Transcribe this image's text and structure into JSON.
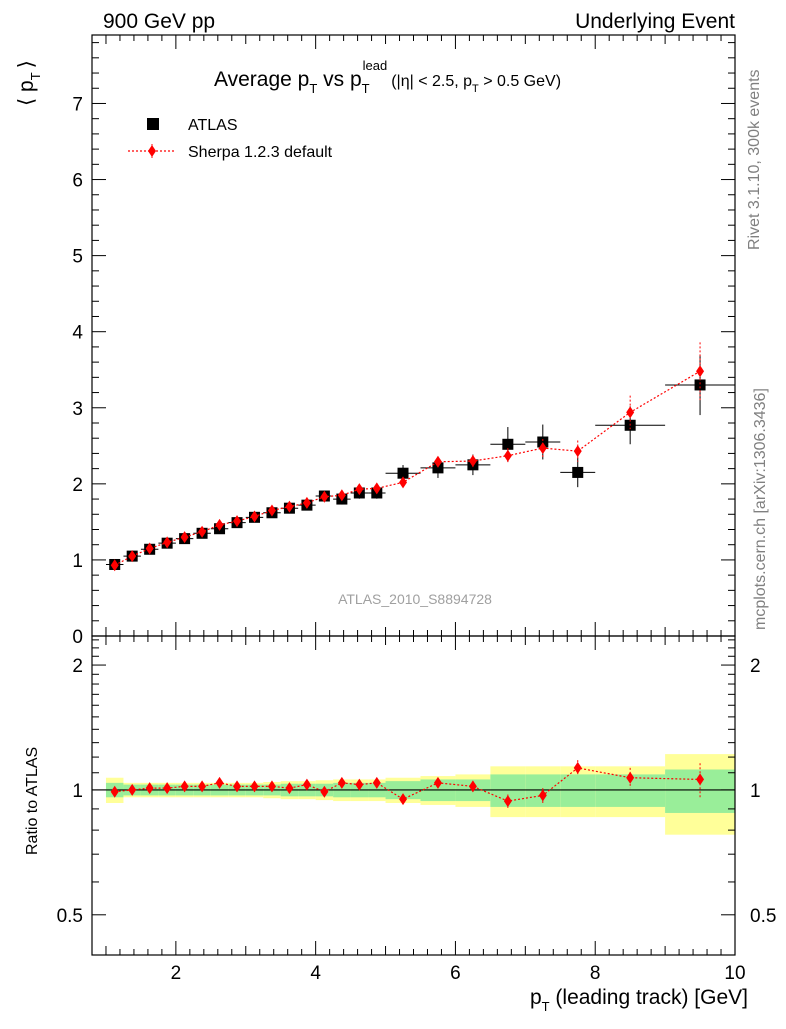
{
  "header": {
    "left": "900 GeV pp",
    "right": "Underlying Event",
    "title_avg": "Average p",
    "title_vs": " vs p",
    "title_lead": "lead",
    "title_cuts_a": "(|η| < 2.5, p",
    "title_cuts_b": " > 0.5 GeV)",
    "sub_T": "T"
  },
  "side_labels": {
    "rivet": "Rivet 3.1.10,  300k events",
    "mcplots": "mcplots.cern.ch [arXiv:1306.3436]"
  },
  "analysis_id": "ATLAS_2010_S8894728",
  "y_label_main": "⟨ p",
  "y_label_main_close": "⟩",
  "y_label_ratio": "Ratio to ATLAS",
  "x_label": "p",
  "x_label_rest": " (leading track) [GeV]",
  "legend": {
    "atlas": "ATLAS",
    "sherpa": "Sherpa 1.2.3 default"
  },
  "colors": {
    "data": "#000000",
    "mc": "#ff0000",
    "band_inner": "#99ee99",
    "band_outer": "#ffff99"
  },
  "chart_data": {
    "type": "scatter",
    "xlim": [
      0.8,
      10.0
    ],
    "ylim_main": [
      0,
      7.9
    ],
    "ylim_ratio": [
      0.4,
      2.35
    ],
    "ratio_log_scale": true,
    "x_ticks": [
      2,
      4,
      6,
      8,
      10
    ],
    "y_ticks_main": [
      0,
      1,
      2,
      3,
      4,
      5,
      6,
      7
    ],
    "y_ticks_ratio": [
      0.5,
      1,
      2
    ],
    "bins": [
      {
        "lo": 1.0,
        "hi": 1.25
      },
      {
        "lo": 1.25,
        "hi": 1.5
      },
      {
        "lo": 1.5,
        "hi": 1.75
      },
      {
        "lo": 1.75,
        "hi": 2.0
      },
      {
        "lo": 2.0,
        "hi": 2.25
      },
      {
        "lo": 2.25,
        "hi": 2.5
      },
      {
        "lo": 2.5,
        "hi": 2.75
      },
      {
        "lo": 2.75,
        "hi": 3.0
      },
      {
        "lo": 3.0,
        "hi": 3.25
      },
      {
        "lo": 3.25,
        "hi": 3.5
      },
      {
        "lo": 3.5,
        "hi": 3.75
      },
      {
        "lo": 3.75,
        "hi": 4.0
      },
      {
        "lo": 4.0,
        "hi": 4.25
      },
      {
        "lo": 4.25,
        "hi": 4.5
      },
      {
        "lo": 4.5,
        "hi": 4.75
      },
      {
        "lo": 4.75,
        "hi": 5.0
      },
      {
        "lo": 5.0,
        "hi": 5.5
      },
      {
        "lo": 5.5,
        "hi": 6.0
      },
      {
        "lo": 6.0,
        "hi": 6.5
      },
      {
        "lo": 6.5,
        "hi": 7.0
      },
      {
        "lo": 7.0,
        "hi": 7.5
      },
      {
        "lo": 7.5,
        "hi": 8.0
      },
      {
        "lo": 8.0,
        "hi": 9.0
      },
      {
        "lo": 9.0,
        "hi": 10.0
      }
    ],
    "series": [
      {
        "name": "ATLAS",
        "x": [
          1.125,
          1.375,
          1.625,
          1.875,
          2.125,
          2.375,
          2.625,
          2.875,
          3.125,
          3.375,
          3.625,
          3.875,
          4.125,
          4.375,
          4.625,
          4.875,
          5.25,
          5.75,
          6.25,
          6.75,
          7.25,
          7.75,
          8.5,
          9.5
        ],
        "y": [
          0.94,
          1.05,
          1.14,
          1.22,
          1.28,
          1.35,
          1.41,
          1.49,
          1.56,
          1.62,
          1.68,
          1.72,
          1.84,
          1.8,
          1.88,
          1.88,
          2.14,
          2.21,
          2.25,
          2.52,
          2.55,
          2.15,
          2.77,
          3.3
        ],
        "band_inner": [
          0.04,
          0.03,
          0.03,
          0.03,
          0.03,
          0.03,
          0.03,
          0.03,
          0.03,
          0.03,
          0.035,
          0.035,
          0.035,
          0.04,
          0.04,
          0.04,
          0.05,
          0.06,
          0.06,
          0.09,
          0.09,
          0.09,
          0.09,
          0.12
        ],
        "band_outer": [
          0.07,
          0.04,
          0.04,
          0.04,
          0.04,
          0.04,
          0.04,
          0.04,
          0.04,
          0.045,
          0.05,
          0.05,
          0.055,
          0.06,
          0.06,
          0.06,
          0.07,
          0.08,
          0.09,
          0.14,
          0.14,
          0.14,
          0.14,
          0.22
        ]
      },
      {
        "name": "Sherpa 1.2.3 default",
        "x": [
          1.125,
          1.375,
          1.625,
          1.875,
          2.125,
          2.375,
          2.625,
          2.875,
          3.125,
          3.375,
          3.625,
          3.875,
          4.125,
          4.375,
          4.625,
          4.875,
          5.25,
          5.75,
          6.25,
          6.75,
          7.25,
          7.75,
          8.5,
          9.5
        ],
        "y": [
          0.93,
          1.05,
          1.15,
          1.23,
          1.3,
          1.37,
          1.46,
          1.51,
          1.57,
          1.65,
          1.7,
          1.75,
          1.83,
          1.85,
          1.93,
          1.94,
          2.02,
          2.29,
          2.3,
          2.37,
          2.47,
          2.43,
          2.94,
          3.48
        ],
        "yerr": [
          0.02,
          0.02,
          0.02,
          0.02,
          0.02,
          0.02,
          0.02,
          0.02,
          0.02,
          0.02,
          0.03,
          0.03,
          0.03,
          0.04,
          0.04,
          0.05,
          0.06,
          0.07,
          0.08,
          0.1,
          0.12,
          0.14,
          0.22,
          0.38
        ],
        "ratio": [
          0.99,
          1.0,
          1.01,
          1.01,
          1.02,
          1.02,
          1.04,
          1.02,
          1.02,
          1.02,
          1.01,
          1.03,
          0.99,
          1.04,
          1.03,
          1.04,
          0.95,
          1.04,
          1.02,
          0.94,
          0.97,
          1.13,
          1.07,
          1.06
        ],
        "ratio_err": [
          0.015,
          0.015,
          0.015,
          0.015,
          0.015,
          0.015,
          0.015,
          0.015,
          0.015,
          0.015,
          0.02,
          0.02,
          0.02,
          0.02,
          0.02,
          0.02,
          0.025,
          0.03,
          0.03,
          0.035,
          0.04,
          0.05,
          0.06,
          0.1
        ]
      }
    ]
  }
}
